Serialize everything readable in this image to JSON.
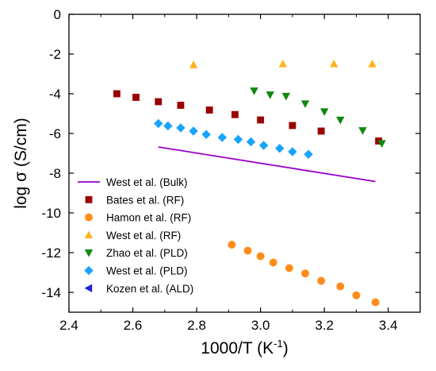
{
  "chart_data": {
    "type": "scatter",
    "title": "",
    "xlabel": "1000/T (K",
    "xlabel_sup": "-1",
    "xlabel_end": ")",
    "ylabel": "log σ (S/cm)",
    "xlim": [
      2.4,
      3.5
    ],
    "ylim": [
      -15,
      0
    ],
    "xticks": [
      "2.4",
      "2.6",
      "2.8",
      "3.0",
      "3.2",
      "3.4"
    ],
    "xtick_values": [
      2.4,
      2.6,
      2.8,
      3.0,
      3.2,
      3.4
    ],
    "yticks": [
      "0",
      "-2",
      "-4",
      "-6",
      "-8",
      "-10",
      "-12",
      "-14"
    ],
    "ytick_values": [
      0,
      -2,
      -4,
      -6,
      -8,
      -10,
      -12,
      -14
    ],
    "grid": false,
    "legend_position": "bottom-left",
    "series": [
      {
        "name": "West et al. (Bulk)",
        "marker": "line",
        "color": "#9900cc",
        "points": [
          [
            2.68,
            -6.68
          ],
          [
            3.36,
            -8.42
          ]
        ]
      },
      {
        "name": "Bates et al. (RF)",
        "marker": "square",
        "color": "#990000",
        "points": [
          [
            2.55,
            -4.0
          ],
          [
            2.61,
            -4.18
          ],
          [
            2.68,
            -4.4
          ],
          [
            2.75,
            -4.58
          ],
          [
            2.84,
            -4.82
          ],
          [
            2.92,
            -5.05
          ],
          [
            3.0,
            -5.32
          ],
          [
            3.1,
            -5.6
          ],
          [
            3.19,
            -5.88
          ],
          [
            3.37,
            -6.38
          ]
        ]
      },
      {
        "name": "Hamon et al. (RF)",
        "marker": "circle",
        "color": "#ff8c1a",
        "points": [
          [
            2.91,
            -11.6
          ],
          [
            2.96,
            -11.9
          ],
          [
            3.0,
            -12.18
          ],
          [
            3.04,
            -12.5
          ],
          [
            3.09,
            -12.78
          ],
          [
            3.14,
            -13.05
          ],
          [
            3.19,
            -13.42
          ],
          [
            3.25,
            -13.7
          ],
          [
            3.3,
            -14.15
          ],
          [
            3.36,
            -14.5
          ]
        ]
      },
      {
        "name": "West et al. (RF)",
        "marker": "triangle-up",
        "color": "#ffb31a",
        "points": [
          [
            2.79,
            -2.55
          ],
          [
            3.07,
            -2.5
          ],
          [
            3.23,
            -2.5
          ],
          [
            3.35,
            -2.5
          ]
        ]
      },
      {
        "name": "Zhao et al. (PLD)",
        "marker": "triangle-down",
        "color": "#118811",
        "points": [
          [
            2.98,
            -3.85
          ],
          [
            3.03,
            -4.05
          ],
          [
            3.08,
            -4.12
          ],
          [
            3.14,
            -4.5
          ],
          [
            3.2,
            -4.9
          ],
          [
            3.25,
            -5.32
          ],
          [
            3.32,
            -5.85
          ],
          [
            3.38,
            -6.5
          ]
        ]
      },
      {
        "name": "West et al. (PLD)",
        "marker": "diamond",
        "color": "#1aa3ff",
        "points": [
          [
            2.68,
            -5.5
          ],
          [
            2.71,
            -5.62
          ],
          [
            2.75,
            -5.72
          ],
          [
            2.79,
            -5.88
          ],
          [
            2.83,
            -6.05
          ],
          [
            2.88,
            -6.2
          ],
          [
            2.93,
            -6.3
          ],
          [
            2.97,
            -6.42
          ],
          [
            3.01,
            -6.6
          ],
          [
            3.06,
            -6.75
          ],
          [
            3.1,
            -6.92
          ],
          [
            3.15,
            -7.05
          ]
        ]
      },
      {
        "name": "Kozen et al. (ALD)",
        "marker": "triangle-left",
        "color": "#1f1fdd",
        "points": []
      }
    ]
  }
}
